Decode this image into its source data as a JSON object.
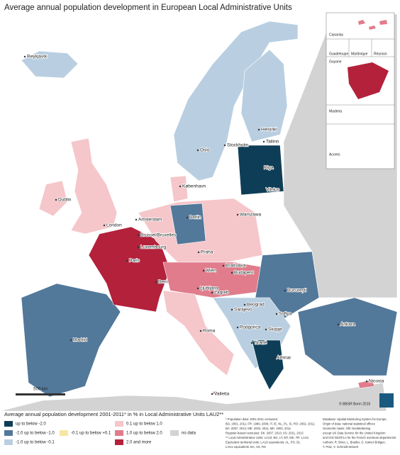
{
  "title": "Average annual population development in European Local Administrative Units",
  "cities": [
    "Reykjavík",
    "Helsinki",
    "Oslo",
    "Stockholm",
    "Tallinn",
    "Riga",
    "Vilnius",
    "København",
    "Dublin",
    "Amsterdam",
    "London",
    "Berlin",
    "Warszawa",
    "Brussel/Bruxelles",
    "Luxembourg",
    "Praha",
    "Paris",
    "Wien",
    "Bratislava",
    "Bern",
    "Budapest",
    "Ljubljana",
    "Zagreb",
    "București",
    "Beograd",
    "Sarajevo",
    "Sofiya",
    "Podgorica",
    "Skopje",
    "Tiranë",
    "Roma",
    "Madrid",
    "Athinai",
    "Ankara",
    "Nicosia",
    "Valletta"
  ],
  "insets": [
    "Canarias",
    "Guadeloupe",
    "Martinique",
    "Réunion",
    "Guyane",
    "Madeira",
    "Acores"
  ],
  "scale": "500 km",
  "copyright": "© BBSR Bonn 2015",
  "legend": {
    "title": "Average annual population development 2001-2011* in % in Local Administrative Units LAU2**",
    "items": [
      {
        "label": "up to below -2.0",
        "color": "#0e3e57"
      },
      {
        "label": "-2.0 up to below -1.0",
        "color": "#52789a"
      },
      {
        "label": "-1.0 up to below -0.1",
        "color": "#b9cfe1"
      },
      {
        "label": "-0.1 up to below +0.1",
        "color": "#f6e6a2"
      },
      {
        "label": "0.1 up to below 1.0",
        "color": "#f5c6ca"
      },
      {
        "label": "1.0 up to below 2.0",
        "color": "#e07c8b"
      },
      {
        "label": "2.0 and more",
        "color": "#b3213b"
      },
      {
        "label": "no data",
        "color": "#d3d3d3"
      }
    ]
  },
  "notes": [
    "* Population data: 2001-2011 censuses;",
    "BG: 2001, 2011; FR: 1999, 2009; IT, IE, NL, PL, SI, RO: 2002, 2011;",
    "BA: 2007, 2014; ME: 2003, 2011; MK: 2002, 2011",
    "Register-based censuses: DK: 2007, 2013; XS: 2011, 2013",
    "** Local Administrative Units: LAU2; BG, LT, MT, MK, TR: LAU1",
    "Equivalent territorial units: LAU2 equivalents: AL, PO, DL",
    "LAU1 equivalents: BA, XS, RS"
  ],
  "sources": [
    "Database: Spatial Monitoring System for Europe,",
    "Origin of data: national statistical offices",
    "Geometric basis: GfK GeoMarketing",
    "except UK Data Service for the United Kingdom",
    "and IGN GEOFLA for the French overseas departments",
    "Authors: R. Binot, L. Bradler, G. Kämer-Bültgen,",
    "T. Pütz, V. Schmidt-Seiwert"
  ]
}
